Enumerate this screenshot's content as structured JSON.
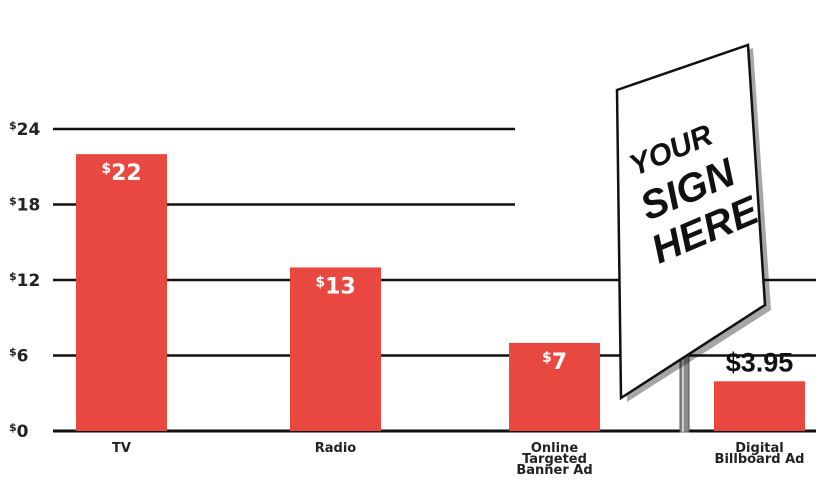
{
  "chart_data": {
    "type": "bar",
    "title": "",
    "xlabel": "",
    "ylabel": "",
    "ylim": [
      0,
      24
    ],
    "yticks": [
      0,
      6,
      12,
      18,
      24
    ],
    "tick_prefix": "$",
    "grid": true,
    "categories": [
      [
        "TV"
      ],
      [
        "Radio"
      ],
      [
        "Online",
        "Targeted",
        "Banner Ad"
      ],
      [
        "Digital",
        "Billboard Ad"
      ]
    ],
    "values": [
      22,
      13,
      7,
      3.95
    ],
    "data_labels": [
      "22",
      "13",
      "7",
      "$3.95"
    ],
    "bar_color": "#e8483f"
  },
  "sign": {
    "lines": [
      "YOUR",
      "SIGN",
      "HERE"
    ]
  }
}
